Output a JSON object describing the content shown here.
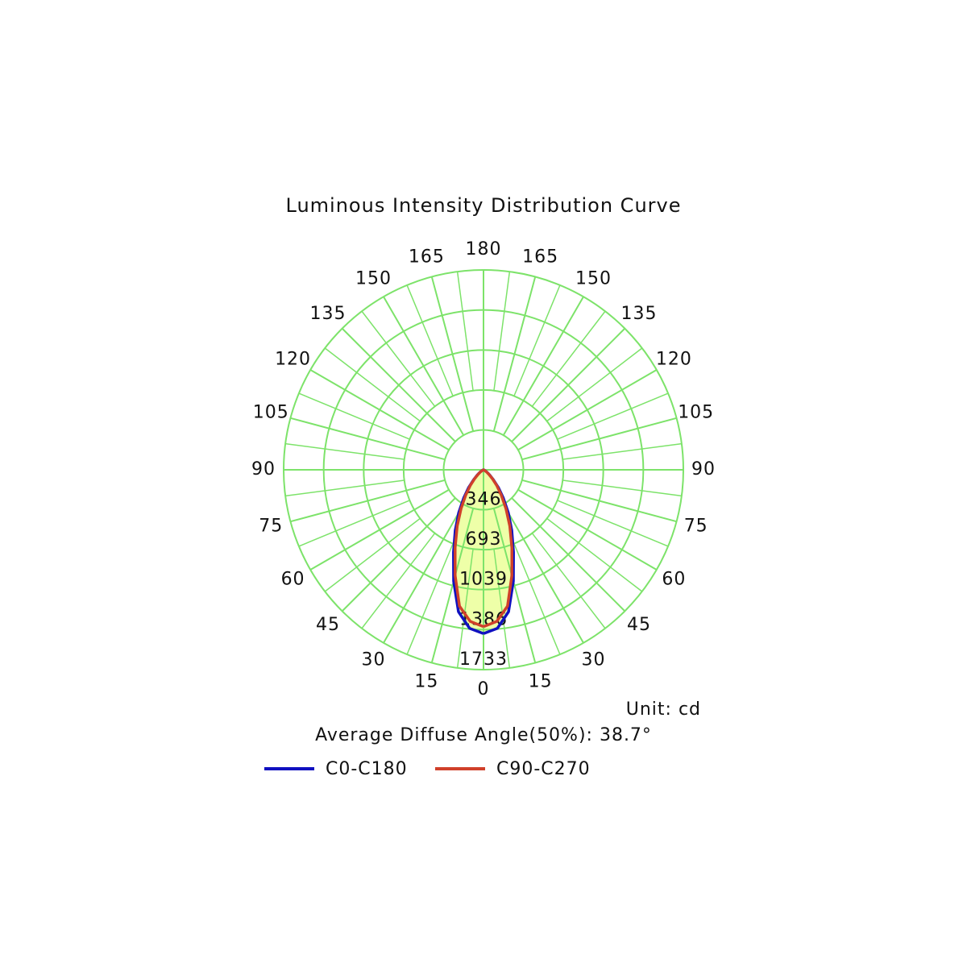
{
  "chart_data": {
    "type": "polar",
    "title": "Luminous Intensity Distribution Curve",
    "unit_label": "Unit: cd",
    "annotation": "Average Diffuse Angle(50%): 38.7°",
    "x": [
      0,
      5,
      10,
      15,
      20,
      25,
      30,
      35,
      40,
      45,
      50,
      55,
      60,
      70,
      80,
      90
    ],
    "xlim": [
      0,
      180
    ],
    "xticks": [
      0,
      15,
      30,
      45,
      60,
      75,
      90,
      105,
      120,
      135,
      150,
      165,
      180
    ],
    "ylim": [
      0,
      1733
    ],
    "yticks": [
      346,
      693,
      1039,
      1386,
      1733
    ],
    "grid": true,
    "grid_color": "#7de36a",
    "fill_color": "#eeffa8",
    "series": [
      {
        "name": "C0-C180",
        "color": "#1010c0",
        "values": [
          1420,
          1380,
          1250,
          1000,
          760,
          580,
          430,
          300,
          200,
          120,
          70,
          40,
          20,
          5,
          2,
          0
        ]
      },
      {
        "name": "C90-C270",
        "color": "#d0402a",
        "values": [
          1360,
          1320,
          1200,
          950,
          720,
          540,
          390,
          270,
          180,
          110,
          60,
          35,
          15,
          4,
          1,
          0
        ]
      }
    ]
  }
}
